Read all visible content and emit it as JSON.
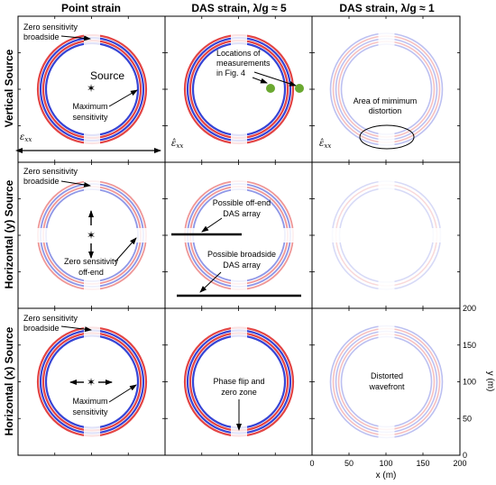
{
  "headers": {
    "columns": [
      "Point strain",
      "DAS strain, λ/g ≈ 5",
      "DAS strain,  λ/g ≈ 1"
    ],
    "rows": [
      "Vertical Source",
      "Horizontal (y) Source",
      "Horizontal (x) Source"
    ]
  },
  "annotations": {
    "zero_broadside_1": [
      "Zero sensitivity",
      "broadside"
    ],
    "source": "Source",
    "max_sens_1": [
      "Maximum",
      "sensitivity"
    ],
    "locations": [
      "Locations of",
      "measurements",
      "in Fig. 4"
    ],
    "min_distortion": [
      "Area of mimimum",
      "distortion"
    ],
    "zero_broadside_2": [
      "Zero sensitivity",
      "broadside"
    ],
    "zero_offend": [
      "Zero sensitivity",
      "off-end"
    ],
    "offend_das": [
      "Possible off-end",
      "DAS array"
    ],
    "broadside_das": [
      "Possible broadside",
      "DAS array"
    ],
    "zero_broadside_3": [
      "Zero sensitivity",
      "broadside"
    ],
    "max_sens_3": [
      "Maximum",
      "sensitivity"
    ],
    "phase_flip": [
      "Phase flip and",
      "zero zone"
    ],
    "distorted": [
      "Distorted",
      "wavefront"
    ]
  },
  "symbols": {
    "point": "ε",
    "point_sub": "xx",
    "das": "ε̂",
    "das_sub": "xx"
  },
  "axes": {
    "x_label": "x (m)",
    "y_label": "y (m)",
    "x_ticks": [
      "0",
      "50",
      "100",
      "150",
      "200"
    ],
    "y_ticks": [
      "0",
      "50",
      "100",
      "150",
      "200"
    ]
  },
  "colors": {
    "blue": "#2030d0",
    "red": "#e03030",
    "marker": "#6aa830"
  }
}
